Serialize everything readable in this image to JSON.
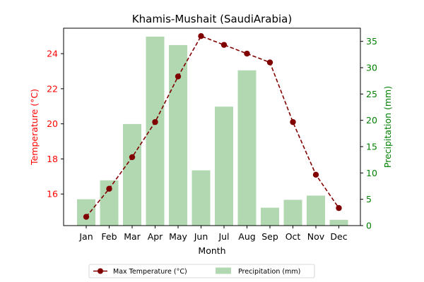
{
  "chart_data": {
    "type": "bar",
    "title": "Khamis-Mushait (SaudiArabia)",
    "xlabel": "Month",
    "categories": [
      "Jan",
      "Feb",
      "Mar",
      "Apr",
      "May",
      "Jun",
      "Jul",
      "Aug",
      "Sep",
      "Oct",
      "Nov",
      "Dec"
    ],
    "y_left": {
      "label": "Temperature (°C)",
      "color": "#ff0000",
      "ylim": [
        14.2,
        25.45
      ],
      "ticks": [
        16,
        18,
        20,
        22,
        24
      ]
    },
    "y_right": {
      "label": "Precipitation (mm)",
      "color": "#008000",
      "ylim": [
        0,
        37.5
      ],
      "ticks": [
        0,
        5,
        10,
        15,
        20,
        25,
        30,
        35
      ]
    },
    "series": [
      {
        "name": "Max Temperature (°C)",
        "type": "line",
        "axis": "left",
        "color": "#800000",
        "line_style": "dashed",
        "marker": "circle",
        "values": [
          14.7,
          16.3,
          18.1,
          20.1,
          22.7,
          25.0,
          24.5,
          24.0,
          23.5,
          20.1,
          17.1,
          15.2
        ]
      },
      {
        "name": "Precipitation (mm)",
        "type": "bar",
        "axis": "right",
        "color": "#b1d8b1",
        "values": [
          5.0,
          8.6,
          19.3,
          35.9,
          34.3,
          10.5,
          22.6,
          29.5,
          3.4,
          4.9,
          5.7,
          1.1
        ]
      }
    ],
    "legend": {
      "placement": "bottom-center",
      "columns": 2
    },
    "grid": false
  }
}
